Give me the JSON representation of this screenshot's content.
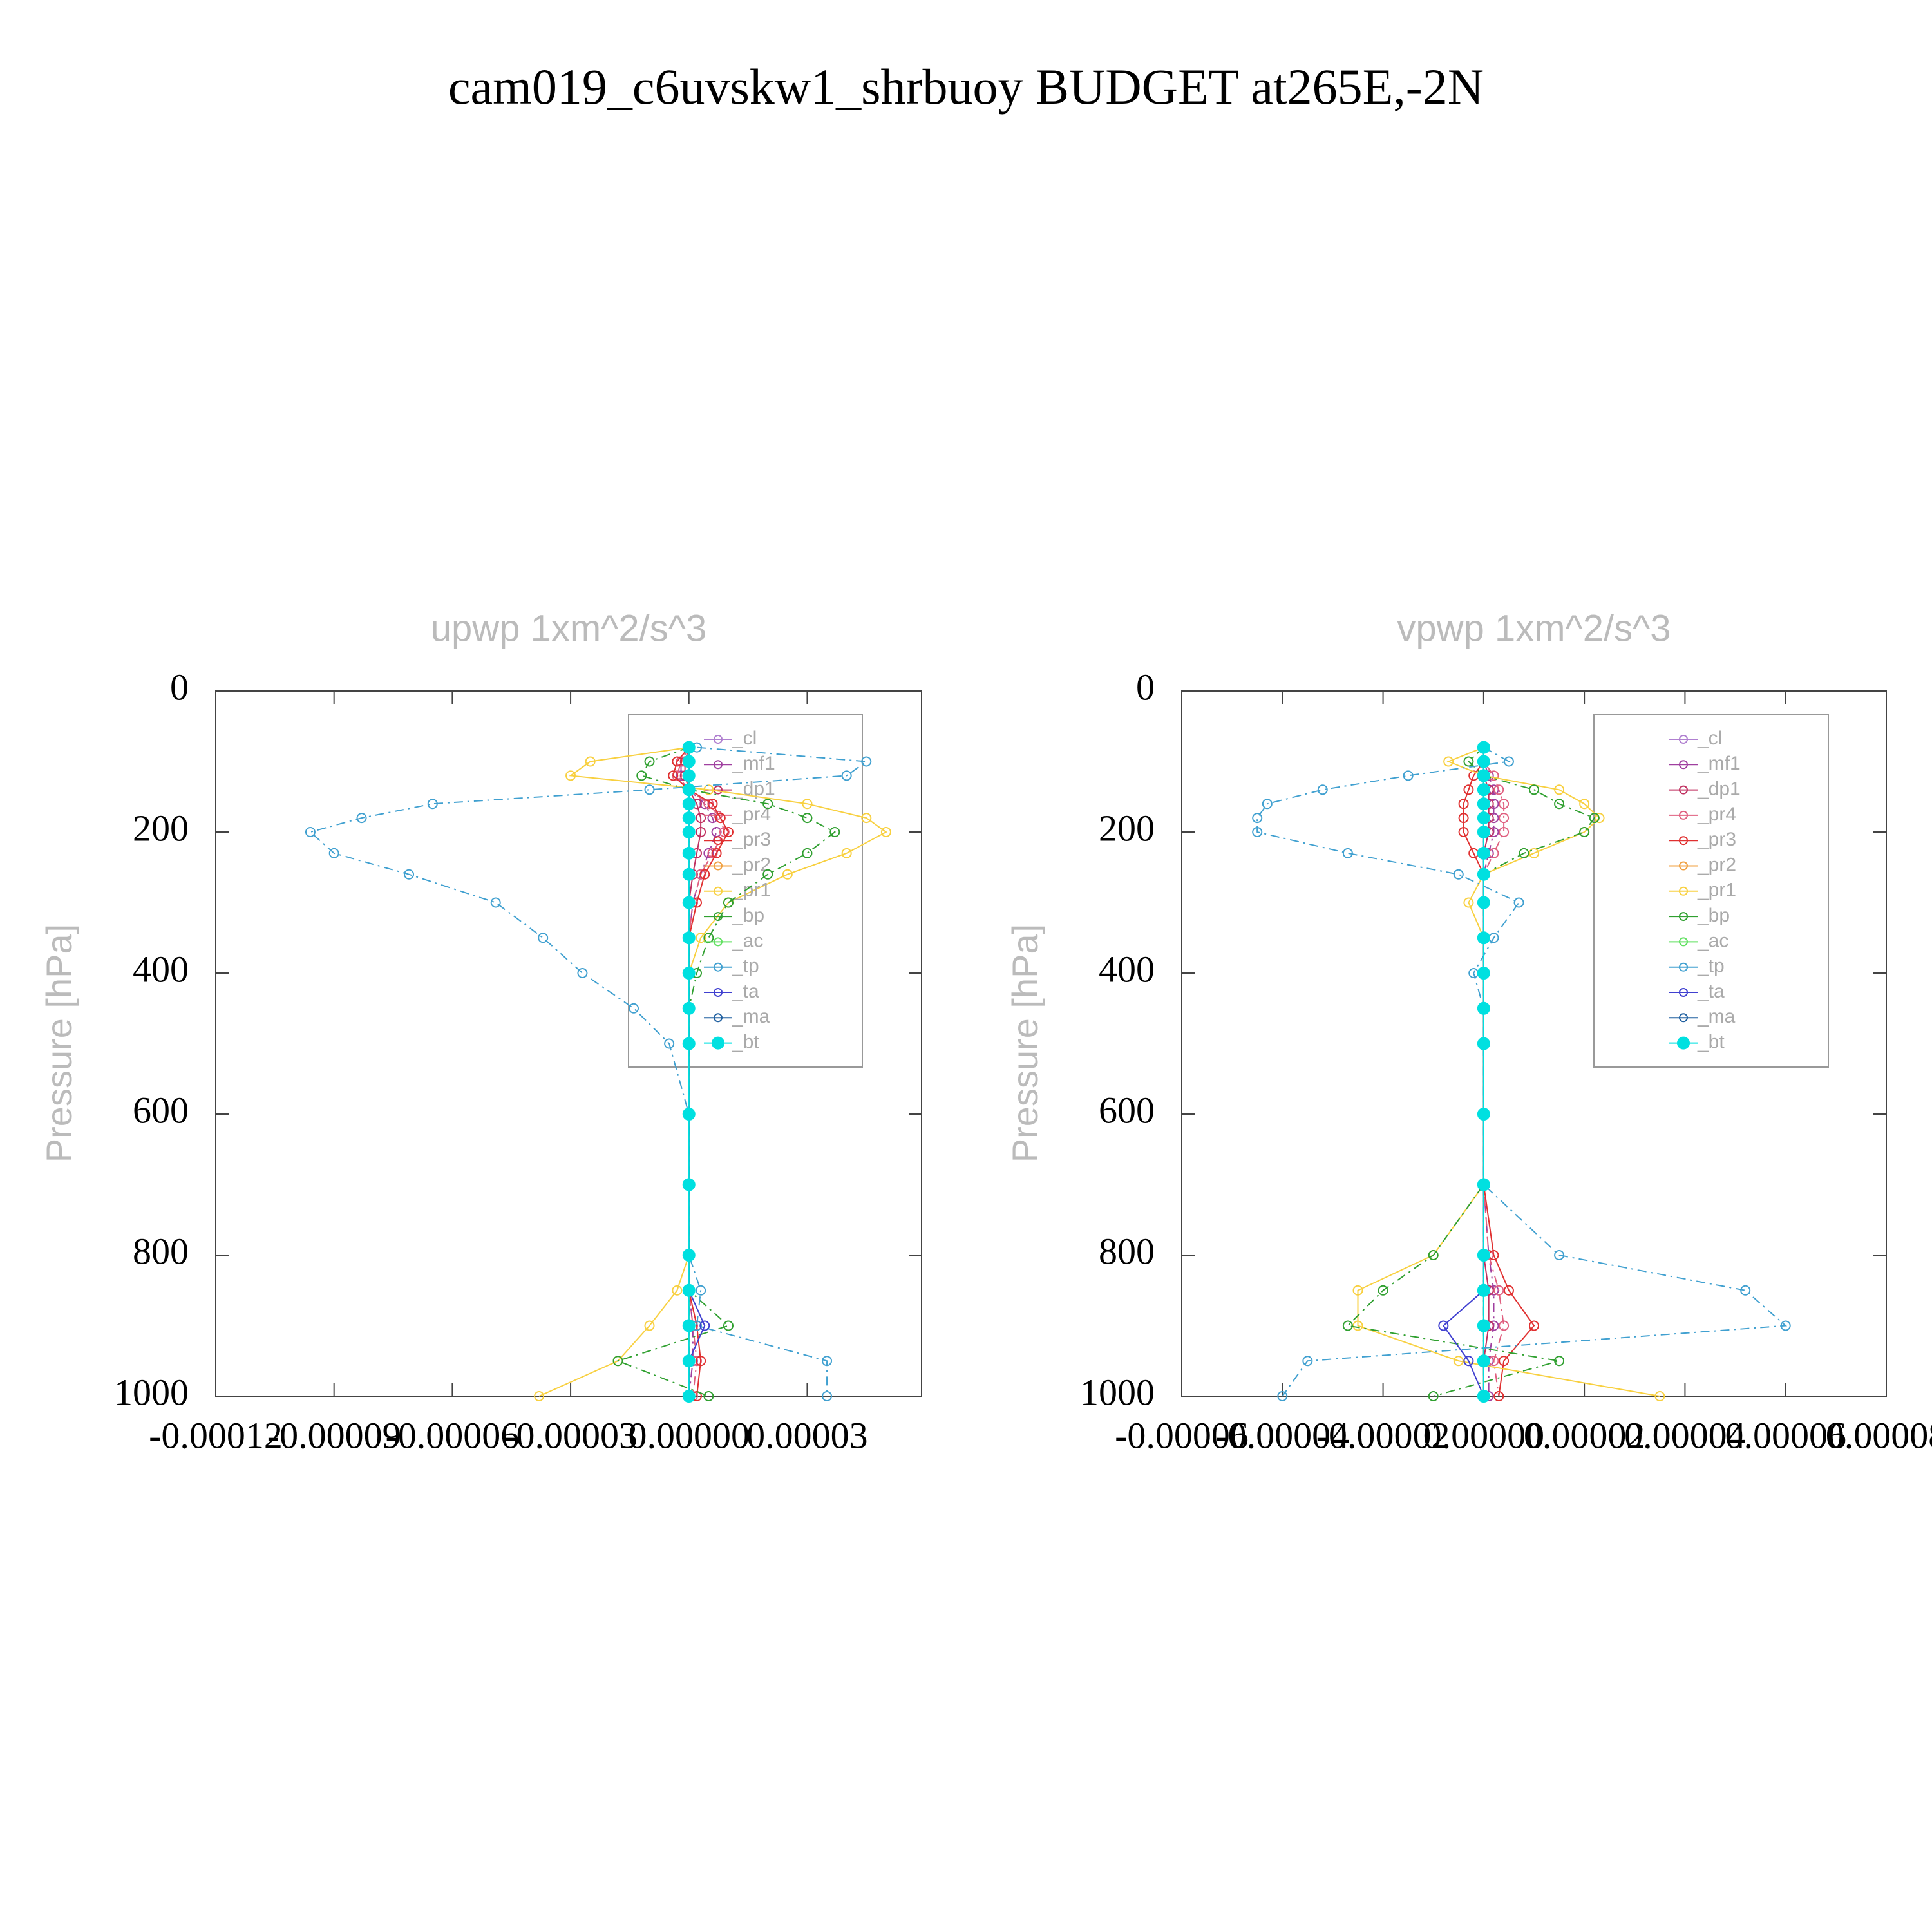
{
  "title": "cam019_c6uvskw1_shrbuoy  BUDGET at265E,-2N",
  "chart_data": [
    {
      "type": "line",
      "title": "upwp   1xm^2/s^3",
      "ylabel": "Pressure [hPa]",
      "y": [
        80,
        100,
        120,
        140,
        160,
        180,
        200,
        230,
        260,
        300,
        350,
        400,
        450,
        500,
        600,
        700,
        800,
        850,
        900,
        950,
        1000
      ],
      "xlim": [
        -0.00012,
        5.9e-05
      ],
      "xticks": [
        {
          "value": -0.00012,
          "label": "-0.00012"
        },
        {
          "value": -9e-05,
          "label": "-0.00009"
        },
        {
          "value": -6e-05,
          "label": "-0.00006"
        },
        {
          "value": -3e-05,
          "label": "-0.00003"
        },
        {
          "value": 0,
          "label": "0.00000"
        },
        {
          "value": 3e-05,
          "label": "0.00003"
        }
      ],
      "ylim": [
        0,
        1000
      ],
      "y_inverted": true,
      "yticks": [
        0,
        200,
        400,
        600,
        800,
        1000
      ],
      "legend": "upper right",
      "series": [
        {
          "name": "_cl",
          "color": "#b080d0",
          "values": [
            0,
            0,
            0,
            0,
            0,
            0,
            0,
            0,
            0,
            0,
            0,
            0,
            0,
            0,
            0,
            0,
            0,
            0,
            0,
            0,
            0
          ]
        },
        {
          "name": "_mf1",
          "color": "#a040a0",
          "values": [
            0,
            -2e-06,
            -2e-06,
            0,
            4e-06,
            6e-06,
            7e-06,
            5e-06,
            3e-06,
            1e-06,
            0,
            0,
            0,
            0,
            0,
            0,
            0,
            0,
            1e-06,
            1e-06,
            0
          ]
        },
        {
          "name": "_dp1",
          "color": "#c03060",
          "values": [
            0,
            -1e-06,
            -1e-06,
            0,
            2e-06,
            3e-06,
            3e-06,
            2e-06,
            1e-06,
            0,
            0,
            0,
            0,
            0,
            0,
            0,
            0,
            0,
            0,
            0,
            0
          ]
        },
        {
          "name": "_pr4",
          "color": "#e06080",
          "values": [
            0,
            -2e-06,
            -3e-06,
            0,
            5e-06,
            8e-06,
            9e-06,
            6e-06,
            3e-06,
            1e-06,
            0,
            0,
            0,
            0,
            0,
            0,
            0,
            0,
            1e-06,
            2e-06,
            1e-06
          ]
        },
        {
          "name": "_pr3",
          "color": "#e03030",
          "values": [
            0,
            -3e-06,
            -4e-06,
            0,
            6e-06,
            8e-06,
            1e-05,
            7e-06,
            4e-06,
            2e-06,
            0,
            0,
            0,
            0,
            0,
            0,
            0,
            0,
            2e-06,
            3e-06,
            2e-06
          ]
        },
        {
          "name": "_pr2",
          "color": "#f0a040",
          "values": [
            0,
            0,
            0,
            0,
            0,
            0,
            0,
            0,
            0,
            0,
            0,
            0,
            0,
            0,
            0,
            0,
            0,
            0,
            0,
            0,
            0
          ]
        },
        {
          "name": "_pr1",
          "color": "#f8d040",
          "values": [
            0,
            -2.5e-05,
            -3e-05,
            5e-06,
            3e-05,
            4.5e-05,
            5e-05,
            4e-05,
            2.5e-05,
            1e-05,
            3e-06,
            0,
            0,
            0,
            0,
            0,
            0,
            -3e-06,
            -1e-05,
            -1.8e-05,
            -3.8e-05
          ]
        },
        {
          "name": "_bp",
          "color": "#30a030",
          "values": [
            0,
            -1e-05,
            -1.2e-05,
            0,
            2e-05,
            3e-05,
            3.7e-05,
            3e-05,
            2e-05,
            1e-05,
            5e-06,
            2e-06,
            0,
            0,
            0,
            0,
            0,
            0,
            1e-05,
            -1.8e-05,
            5e-06
          ]
        },
        {
          "name": "_ac",
          "color": "#60e060",
          "values": [
            0,
            0,
            0,
            0,
            0,
            0,
            0,
            0,
            0,
            0,
            0,
            0,
            0,
            0,
            0,
            0,
            0,
            0,
            0,
            0,
            0
          ]
        },
        {
          "name": "_tp",
          "color": "#40a0d0",
          "values": [
            2e-06,
            4.5e-05,
            4e-05,
            -1e-05,
            -6.5e-05,
            -8.3e-05,
            -9.6e-05,
            -9e-05,
            -7.1e-05,
            -4.9e-05,
            -3.7e-05,
            -2.7e-05,
            -1.4e-05,
            -5e-06,
            0,
            0,
            0,
            3e-06,
            2e-06,
            3.5e-05,
            3.5e-05
          ]
        },
        {
          "name": "_ta",
          "color": "#4040d0",
          "values": [
            0,
            0,
            0,
            0,
            0,
            0,
            0,
            0,
            0,
            0,
            0,
            0,
            0,
            0,
            0,
            0,
            0,
            0,
            4e-06,
            0,
            0
          ]
        },
        {
          "name": "_ma",
          "color": "#2060a0",
          "values": [
            0,
            0,
            0,
            0,
            0,
            0,
            0,
            0,
            0,
            0,
            0,
            0,
            0,
            0,
            0,
            0,
            0,
            0,
            0,
            0,
            0
          ]
        },
        {
          "name": "_bt",
          "color": "#00e0e0",
          "values": [
            0,
            0,
            0,
            0,
            0,
            0,
            0,
            0,
            0,
            0,
            0,
            0,
            0,
            0,
            0,
            0,
            0,
            0,
            0,
            0,
            0
          ]
        }
      ]
    },
    {
      "type": "line",
      "title": "vpwp   1xm^2/s^3",
      "ylabel": "Pressure [hPa]",
      "y": [
        80,
        100,
        120,
        140,
        160,
        180,
        200,
        230,
        260,
        300,
        350,
        400,
        450,
        500,
        600,
        700,
        800,
        850,
        900,
        950,
        1000
      ],
      "xlim": [
        -6e-05,
        8e-05
      ],
      "xticks": [
        {
          "value": -6e-05,
          "label": "-0.00006"
        },
        {
          "value": -4e-05,
          "label": "-0.00004"
        },
        {
          "value": -2e-05,
          "label": "-0.00002"
        },
        {
          "value": 0,
          "label": "0.00000"
        },
        {
          "value": 2e-05,
          "label": "0.00002"
        },
        {
          "value": 4e-05,
          "label": "0.00004"
        },
        {
          "value": 6e-05,
          "label": "0.00006"
        },
        {
          "value": 8e-05,
          "label": "0.00008"
        }
      ],
      "ylim": [
        0,
        1000
      ],
      "y_inverted": true,
      "yticks": [
        0,
        200,
        400,
        600,
        800,
        1000
      ],
      "legend": "upper right",
      "series": [
        {
          "name": "_cl",
          "color": "#b080d0",
          "values": [
            0,
            0,
            0,
            0,
            0,
            0,
            0,
            0,
            0,
            0,
            0,
            0,
            0,
            0,
            0,
            0,
            0,
            0,
            0,
            0,
            0
          ]
        },
        {
          "name": "_mf1",
          "color": "#a040a0",
          "values": [
            0,
            0,
            1e-06,
            2e-06,
            2e-06,
            2e-06,
            2e-06,
            1e-06,
            0,
            0,
            0,
            0,
            0,
            0,
            0,
            0,
            1e-06,
            2e-06,
            2e-06,
            1e-06,
            1e-06
          ]
        },
        {
          "name": "_dp1",
          "color": "#c03060",
          "values": [
            0,
            0,
            0,
            1e-06,
            1e-06,
            1e-06,
            1e-06,
            0,
            0,
            0,
            0,
            0,
            0,
            0,
            0,
            0,
            0,
            1e-06,
            1e-06,
            0,
            0
          ]
        },
        {
          "name": "_pr4",
          "color": "#e06080",
          "values": [
            0,
            0,
            2e-06,
            3e-06,
            4e-06,
            4e-06,
            4e-06,
            2e-06,
            0,
            0,
            0,
            0,
            0,
            0,
            0,
            0,
            1e-06,
            3e-06,
            4e-06,
            2e-06,
            3e-06
          ]
        },
        {
          "name": "_pr3",
          "color": "#e03030",
          "values": [
            0,
            0,
            -2e-06,
            -3e-06,
            -4e-06,
            -4e-06,
            -4e-06,
            -2e-06,
            0,
            0,
            0,
            0,
            0,
            0,
            0,
            0,
            2e-06,
            5e-06,
            1e-05,
            4e-06,
            3e-06
          ]
        },
        {
          "name": "_pr2",
          "color": "#f0a040",
          "values": [
            0,
            0,
            0,
            0,
            0,
            0,
            0,
            0,
            0,
            0,
            0,
            0,
            0,
            0,
            0,
            0,
            0,
            0,
            0,
            0,
            0
          ]
        },
        {
          "name": "_pr1",
          "color": "#f8d040",
          "values": [
            0,
            -7e-06,
            0,
            1.5e-05,
            2e-05,
            2.3e-05,
            2e-05,
            1e-05,
            0,
            -3e-06,
            0,
            0,
            0,
            0,
            0,
            0,
            -1e-05,
            -2.5e-05,
            -2.5e-05,
            -5e-06,
            3.5e-05
          ]
        },
        {
          "name": "_bp",
          "color": "#30a030",
          "values": [
            0,
            -3e-06,
            0,
            1e-05,
            1.5e-05,
            2.2e-05,
            2e-05,
            8e-06,
            0,
            0,
            0,
            0,
            0,
            0,
            0,
            0,
            -1e-05,
            -2e-05,
            -2.7e-05,
            1.5e-05,
            -1e-05
          ]
        },
        {
          "name": "_ac",
          "color": "#60e060",
          "values": [
            0,
            0,
            0,
            0,
            0,
            0,
            0,
            0,
            0,
            0,
            0,
            0,
            0,
            0,
            0,
            0,
            0,
            0,
            0,
            0,
            0
          ]
        },
        {
          "name": "_tp",
          "color": "#40a0d0",
          "values": [
            0,
            5e-06,
            -1.5e-05,
            -3.2e-05,
            -4.3e-05,
            -4.5e-05,
            -4.5e-05,
            -2.7e-05,
            -5e-06,
            7e-06,
            2e-06,
            -2e-06,
            0,
            0,
            0,
            0,
            1.5e-05,
            5.2e-05,
            6e-05,
            -3.5e-05,
            -4e-05
          ]
        },
        {
          "name": "_ta",
          "color": "#4040d0",
          "values": [
            0,
            0,
            0,
            0,
            0,
            0,
            0,
            0,
            0,
            0,
            0,
            0,
            0,
            0,
            0,
            0,
            0,
            0,
            -8e-06,
            -3e-06,
            0
          ]
        },
        {
          "name": "_ma",
          "color": "#2060a0",
          "values": [
            0,
            0,
            0,
            0,
            0,
            0,
            0,
            0,
            0,
            0,
            0,
            0,
            0,
            0,
            0,
            0,
            0,
            0,
            0,
            0,
            0
          ]
        },
        {
          "name": "_bt",
          "color": "#00e0e0",
          "values": [
            0,
            0,
            0,
            0,
            0,
            0,
            0,
            0,
            0,
            0,
            0,
            0,
            0,
            0,
            0,
            0,
            0,
            0,
            0,
            0,
            0
          ]
        }
      ]
    }
  ]
}
